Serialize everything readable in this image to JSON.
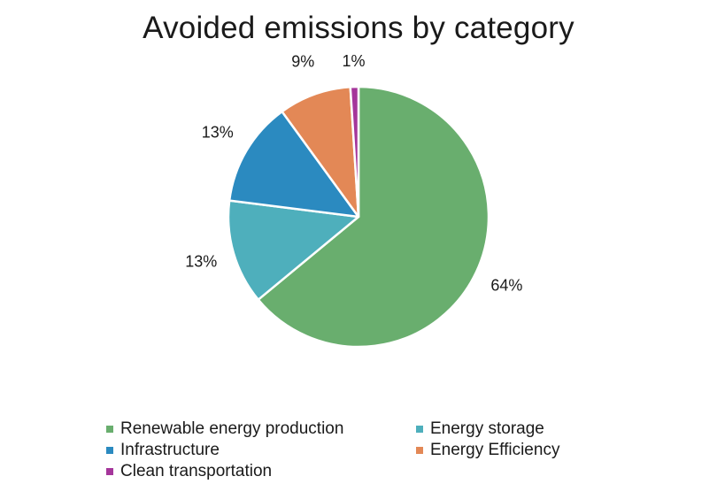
{
  "chart_data": {
    "type": "pie",
    "title": "Avoided emissions by category",
    "slices": [
      {
        "label": "Renewable energy production",
        "value": 64,
        "value_label": "64%",
        "color": "#69ae6e"
      },
      {
        "label": "Energy storage",
        "value": 13,
        "value_label": "13%",
        "color": "#4eafbc"
      },
      {
        "label": "Infrastructure",
        "value": 13,
        "value_label": "13%",
        "color": "#2b8ac0"
      },
      {
        "label": "Energy Efficiency",
        "value": 9,
        "value_label": "9%",
        "color": "#e38856"
      },
      {
        "label": "Clean transportation",
        "value": 1,
        "value_label": "1%",
        "color": "#a5369b"
      }
    ],
    "legend_position": "bottom"
  }
}
